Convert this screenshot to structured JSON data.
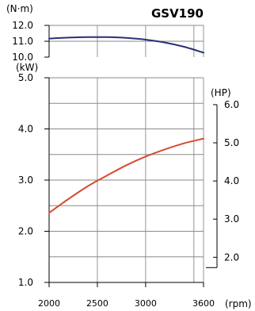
{
  "chart_data": {
    "type": "line",
    "title": "GSV190",
    "x": {
      "unit": "(rpm)",
      "min": 2000,
      "max": 3600,
      "ticks": [
        2000,
        2500,
        3000,
        3600
      ],
      "tick_labels": [
        "2000",
        "2500",
        "3000",
        "3600"
      ],
      "gridlines": [
        2500,
        3000,
        3500
      ]
    },
    "torque_axis": {
      "unit": "(N·m)",
      "min": 10.0,
      "max": 12.0,
      "ticks": [
        10.0,
        11.0,
        12.0
      ],
      "tick_labels": [
        "10.0",
        "11.0",
        "12.0"
      ]
    },
    "power_kw_axis": {
      "unit": "(kW)",
      "min": 1.0,
      "max": 5.0,
      "ticks": [
        1.0,
        2.0,
        3.0,
        4.0,
        5.0
      ],
      "tick_labels": [
        "1.0",
        "2.0",
        "3.0",
        "4.0",
        "5.0"
      ]
    },
    "power_hp_axis": {
      "unit": "(HP)",
      "ticks": [
        2.0,
        3.0,
        4.0,
        5.0,
        6.0
      ],
      "tick_labels": [
        "2.0",
        "3.0",
        "4.0",
        "5.0",
        "6.0"
      ]
    },
    "series": [
      {
        "axis": "torque",
        "color": "#2b2f78",
        "x": [
          2000,
          2200,
          2400,
          2600,
          2800,
          3000,
          3200,
          3400,
          3600
        ],
        "values": [
          11.17,
          11.23,
          11.26,
          11.26,
          11.21,
          11.1,
          10.92,
          10.65,
          10.28
        ]
      },
      {
        "axis": "power_kw",
        "color": "#d84a2f",
        "x": [
          2000,
          2200,
          2400,
          2600,
          2800,
          3000,
          3200,
          3400,
          3600
        ],
        "values": [
          2.36,
          2.63,
          2.88,
          3.09,
          3.29,
          3.46,
          3.6,
          3.72,
          3.81
        ]
      }
    ],
    "grid": true,
    "legend": "none"
  }
}
